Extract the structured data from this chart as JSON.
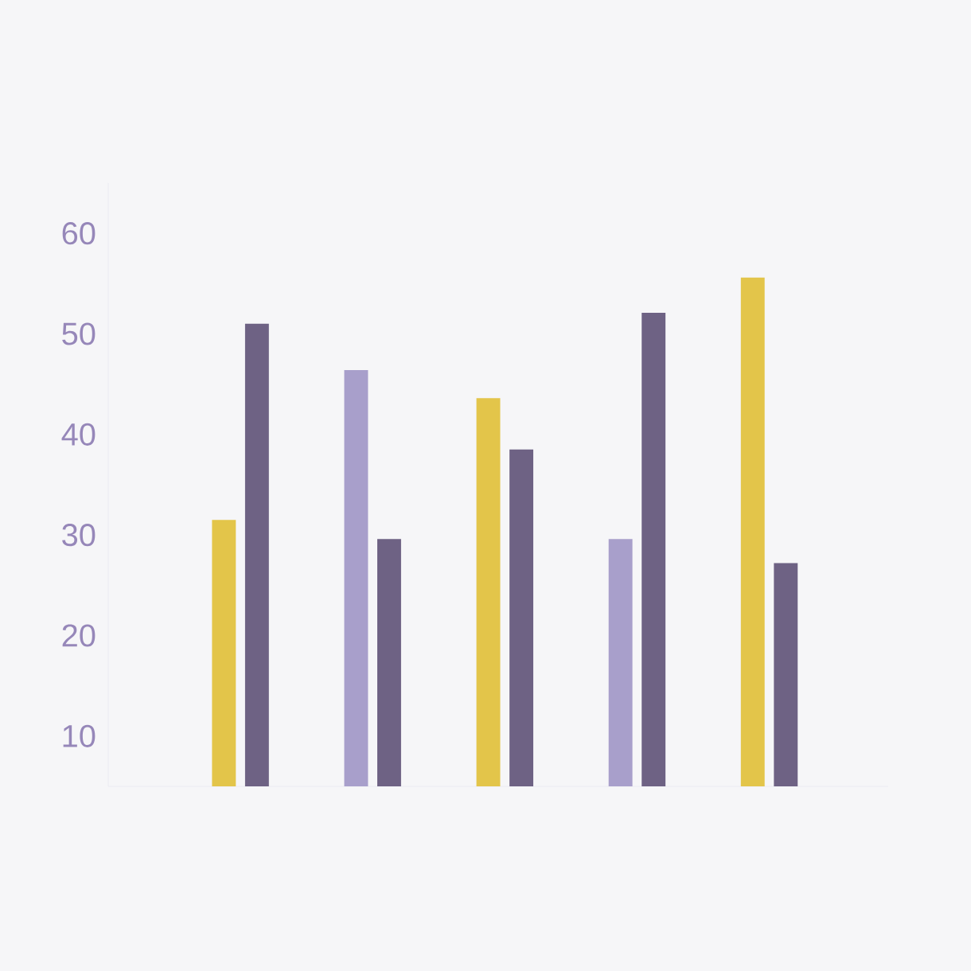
{
  "chart_data": {
    "type": "bar",
    "categories": [
      null,
      null,
      null,
      null,
      null
    ],
    "series": [
      {
        "colors": [
          "#e3c54a",
          "#a89fcb",
          "#e3c54a",
          "#a89fcb",
          "#e3c54a"
        ],
        "values": [
          31.5,
          46.4,
          43.6,
          29.6,
          55.6
        ]
      },
      {
        "color": "#6e6284",
        "values": [
          51.0,
          29.6,
          38.5,
          52.1,
          27.2
        ]
      }
    ],
    "ylim": [
      5,
      65
    ],
    "yticks": [
      10,
      20,
      30,
      40,
      50,
      60
    ]
  }
}
